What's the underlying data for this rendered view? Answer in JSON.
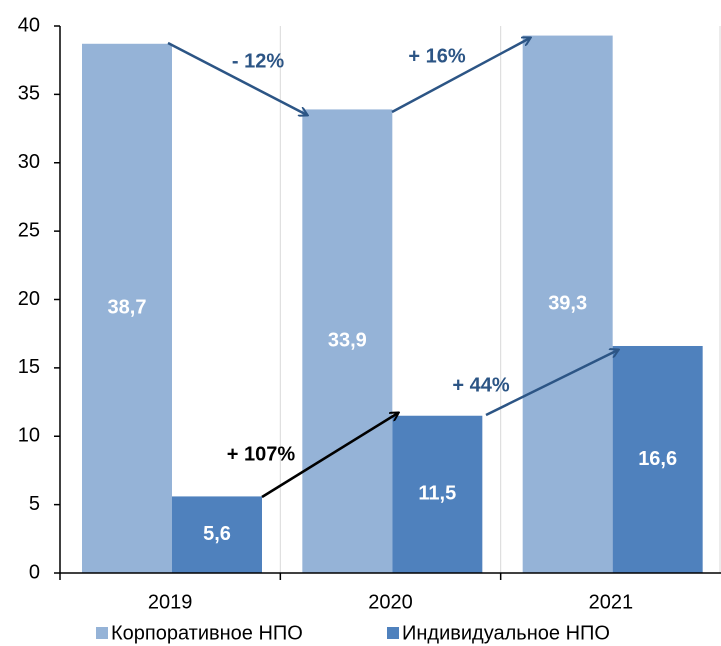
{
  "chart_data": {
    "type": "bar",
    "categories": [
      "2019",
      "2020",
      "2021"
    ],
    "series": [
      {
        "name": "Корпоративное НПО",
        "color": "#95b3d7",
        "values": [
          38.7,
          33.9,
          39.3
        ],
        "value_labels": [
          "38,7",
          "33,9",
          "39,3"
        ]
      },
      {
        "name": "Индивидуальное НПО",
        "color": "#4f81bd",
        "values": [
          5.6,
          11.5,
          16.6
        ],
        "value_labels": [
          "5,6",
          "11,5",
          "16,6"
        ]
      }
    ],
    "ylim": [
      0,
      40
    ],
    "yticks": [
      0,
      5,
      10,
      15,
      20,
      25,
      30,
      35,
      40
    ],
    "annotations": [
      "- 12%",
      "+ 16%",
      "+ 107%",
      "+ 44%"
    ],
    "legend": "bottom"
  }
}
